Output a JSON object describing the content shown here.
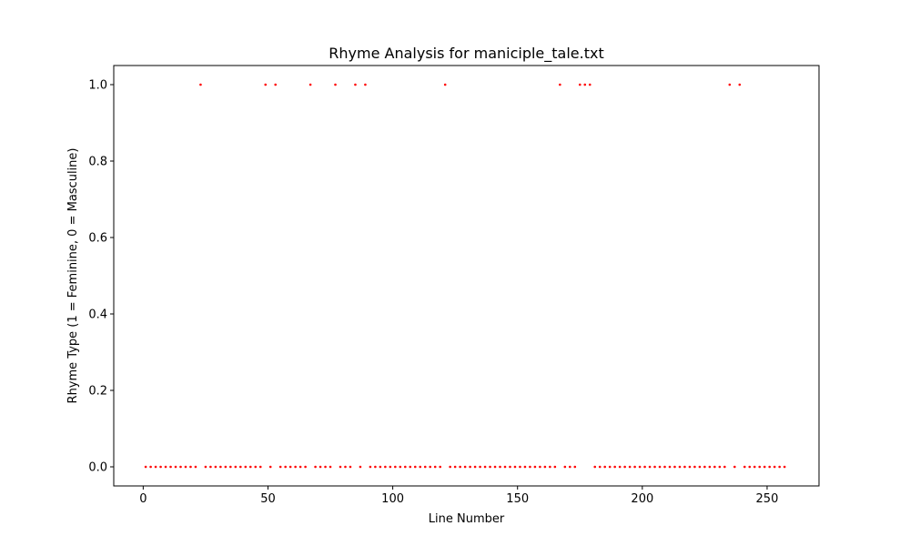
{
  "chart_data": {
    "type": "scatter",
    "title": "Rhyme Analysis for maniciple_tale.txt",
    "xlabel": "Line Number",
    "ylabel": "Rhyme Type (1 = Feminine, 0 = Masculine)",
    "xlim": [
      -11.8,
      270.8
    ],
    "ylim": [
      -0.05,
      1.05
    ],
    "xticks": [
      0,
      50,
      100,
      150,
      200,
      250
    ],
    "yticks": [
      0.0,
      0.2,
      0.4,
      0.6,
      0.8,
      1.0
    ],
    "xtick_labels": [
      "0",
      "50",
      "100",
      "150",
      "200",
      "250"
    ],
    "ytick_labels": [
      "0.0",
      "0.2",
      "0.4",
      "0.6",
      "0.8",
      "1.0"
    ],
    "grid": false,
    "marker_color": "#ff0000",
    "series": [
      {
        "x": [
          1,
          3,
          5,
          7,
          9,
          11,
          13,
          15,
          17,
          19,
          21,
          23,
          25,
          27,
          29,
          31,
          33,
          35,
          37,
          39,
          41,
          43,
          45,
          47,
          49,
          51,
          53,
          55,
          57,
          59,
          61,
          63,
          65,
          67,
          69,
          71,
          73,
          75,
          77,
          79,
          81,
          83,
          85,
          87,
          89,
          91,
          93,
          95,
          97,
          99,
          101,
          103,
          105,
          107,
          109,
          111,
          113,
          115,
          117,
          119,
          121,
          123,
          125,
          127,
          129,
          131,
          133,
          135,
          137,
          139,
          141,
          143,
          145,
          147,
          149,
          151,
          153,
          155,
          157,
          159,
          161,
          163,
          165,
          167,
          169,
          171,
          173,
          175,
          177,
          179,
          181,
          183,
          185,
          187,
          189,
          191,
          193,
          195,
          197,
          199,
          201,
          203,
          205,
          207,
          209,
          211,
          213,
          215,
          217,
          219,
          221,
          223,
          225,
          227,
          229,
          231,
          233,
          235,
          237,
          239,
          241,
          243,
          245,
          247,
          249,
          251,
          253,
          255,
          257
        ],
        "y": [
          0,
          0,
          0,
          0,
          0,
          0,
          0,
          0,
          0,
          0,
          0,
          1,
          0,
          0,
          0,
          0,
          0,
          0,
          0,
          0,
          0,
          0,
          0,
          0,
          1,
          0,
          1,
          0,
          0,
          0,
          0,
          0,
          0,
          1,
          0,
          0,
          0,
          0,
          1,
          0,
          0,
          0,
          1,
          0,
          1,
          0,
          0,
          0,
          0,
          0,
          0,
          0,
          0,
          0,
          0,
          0,
          0,
          0,
          0,
          0,
          1,
          0,
          0,
          0,
          0,
          0,
          0,
          0,
          0,
          0,
          0,
          0,
          0,
          0,
          0,
          0,
          0,
          0,
          0,
          0,
          0,
          0,
          0,
          1,
          0,
          0,
          0,
          1,
          1,
          1,
          0,
          0,
          0,
          0,
          0,
          0,
          0,
          0,
          0,
          0,
          0,
          0,
          0,
          0,
          0,
          0,
          0,
          0,
          0,
          0,
          0,
          0,
          0,
          0,
          0,
          0,
          0,
          1,
          0,
          1,
          0,
          0,
          0,
          0,
          0,
          0,
          0,
          0,
          0
        ]
      }
    ]
  }
}
